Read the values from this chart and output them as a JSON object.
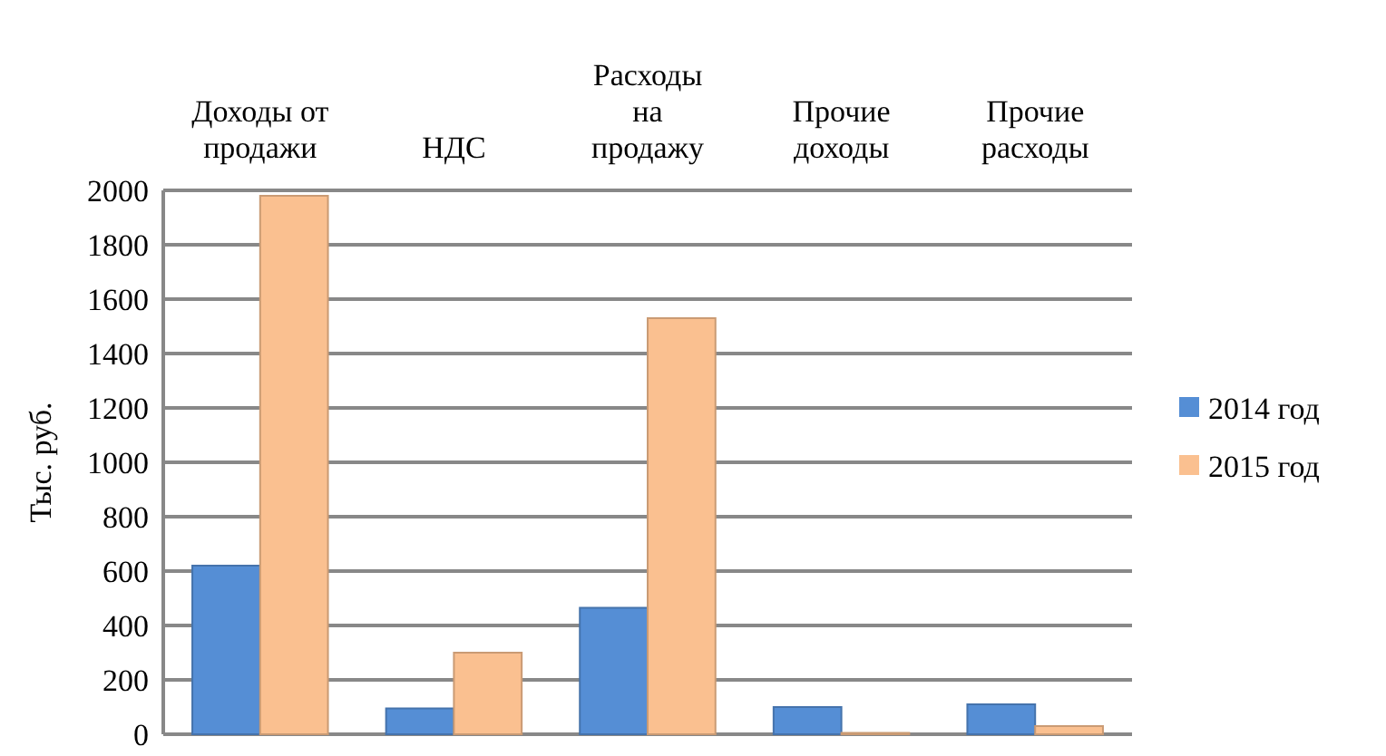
{
  "chart_data": {
    "type": "bar",
    "ylabel": "Тыс. руб.",
    "categories": [
      "Доходы от продажи",
      "НДС",
      "Расходы на продажу",
      "Прочие доходы",
      "Прочие расходы"
    ],
    "series": [
      {
        "name": "2014 год",
        "color": "#558ed5",
        "values": [
          620,
          95,
          465,
          100,
          110
        ]
      },
      {
        "name": "2015 год",
        "color": "#fac090",
        "values": [
          1980,
          300,
          1530,
          5,
          30
        ]
      }
    ],
    "ylim": [
      0,
      2000
    ],
    "yticks": [
      0,
      200,
      400,
      600,
      800,
      1000,
      1200,
      1400,
      1600,
      1800,
      2000
    ],
    "grid": "y",
    "legend": "right"
  }
}
